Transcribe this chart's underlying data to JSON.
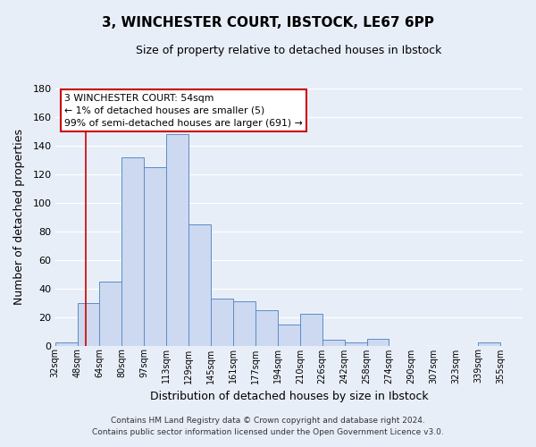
{
  "title": "3, WINCHESTER COURT, IBSTOCK, LE67 6PP",
  "subtitle": "Size of property relative to detached houses in Ibstock",
  "xlabel": "Distribution of detached houses by size in Ibstock",
  "ylabel": "Number of detached properties",
  "bar_labels": [
    "32sqm",
    "48sqm",
    "64sqm",
    "80sqm",
    "97sqm",
    "113sqm",
    "129sqm",
    "145sqm",
    "161sqm",
    "177sqm",
    "194sqm",
    "210sqm",
    "226sqm",
    "242sqm",
    "258sqm",
    "274sqm",
    "290sqm",
    "307sqm",
    "323sqm",
    "339sqm",
    "355sqm"
  ],
  "bar_heights": [
    2,
    30,
    45,
    132,
    125,
    148,
    85,
    33,
    31,
    25,
    15,
    22,
    4,
    2,
    5,
    0,
    0,
    0,
    0,
    2,
    0
  ],
  "bar_color": "#ccd9f0",
  "bar_edge_color": "#5b8cc8",
  "bg_color": "#e8eef8",
  "grid_color": "#ffffff",
  "red_line_x": 1.375,
  "annotation_line1": "3 WINCHESTER COURT: 54sqm",
  "annotation_line2": "← 1% of detached houses are smaller (5)",
  "annotation_line3": "99% of semi-detached houses are larger (691) →",
  "annotation_box_color": "#ffffff",
  "annotation_box_edge": "#cc0000",
  "footer1": "Contains HM Land Registry data © Crown copyright and database right 2024.",
  "footer2": "Contains public sector information licensed under the Open Government Licence v3.0.",
  "ylim": [
    0,
    180
  ],
  "yticks": [
    0,
    20,
    40,
    60,
    80,
    100,
    120,
    140,
    160,
    180
  ]
}
